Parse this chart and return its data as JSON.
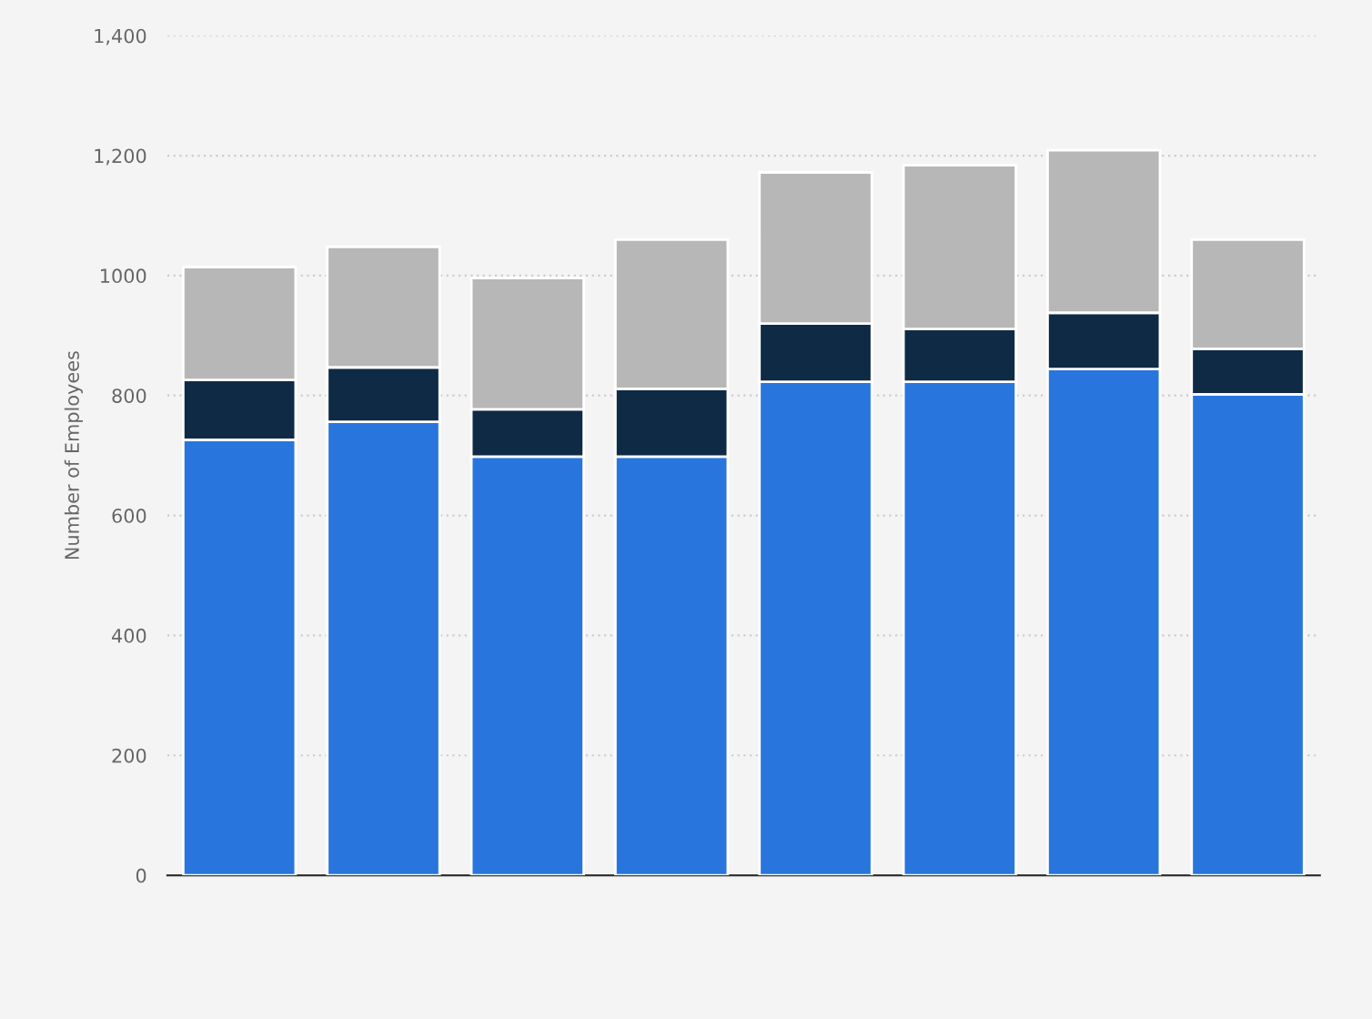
{
  "chart_data": {
    "type": "bar",
    "stacked": true,
    "ylabel": "Number of Employees",
    "categories": [
      null,
      null,
      null,
      null,
      null,
      null,
      null,
      null
    ],
    "series": [
      {
        "color": "#2876dd",
        "values": [
          726,
          756,
          698,
          698,
          823,
          823,
          844,
          802
        ]
      },
      {
        "color": "#0f2a45",
        "values": [
          100,
          91,
          79,
          113,
          97,
          88,
          94,
          76
        ]
      },
      {
        "color": "#b7b7b7",
        "values": [
          188,
          201,
          219,
          249,
          252,
          273,
          271,
          182
        ]
      }
    ],
    "ylim": [
      0,
      1400
    ],
    "yticks": [
      0,
      200,
      400,
      600,
      800,
      1000,
      {
        "value": 1200,
        "label": "1,200"
      },
      {
        "value": 1400,
        "label": "1,400"
      }
    ],
    "grid": "y",
    "legend": false
  }
}
